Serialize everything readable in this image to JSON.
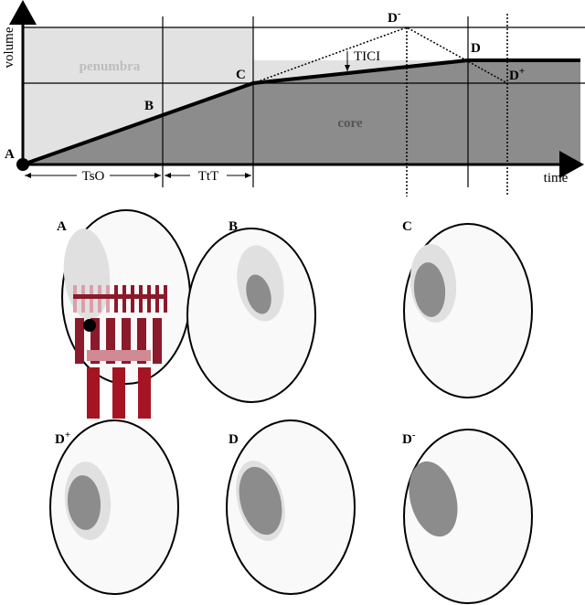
{
  "graph": {
    "y_axis_label": "volume",
    "x_axis_label": "time",
    "penumbra_label": "penumbra",
    "core_label": "core",
    "tici_label": "TICI",
    "tso_label": "TsO",
    "ttt_label": "TtT",
    "points": {
      "A": "A",
      "B": "B",
      "C": "C",
      "D": "D",
      "D_minus": {
        "letter": "D",
        "sup": "-"
      },
      "D_plus": {
        "letter": "D",
        "sup": "+"
      }
    }
  },
  "brains": [
    {
      "letter": "A"
    },
    {
      "letter": "B"
    },
    {
      "letter": "C"
    },
    {
      "letter": "D",
      "sup": "+"
    },
    {
      "letter": "D"
    },
    {
      "letter": "D",
      "sup": "-"
    }
  ]
}
